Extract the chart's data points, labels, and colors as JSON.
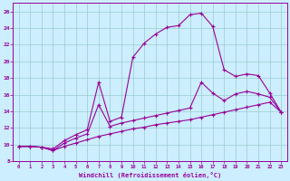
{
  "xlabel": "Windchill (Refroidissement éolien,°C)",
  "bg_color": "#cceeff",
  "line_color": "#990099",
  "grid_color": "#99cccc",
  "xlim": [
    -0.5,
    23.5
  ],
  "ylim": [
    8,
    27
  ],
  "yticks": [
    8,
    10,
    12,
    14,
    16,
    18,
    20,
    22,
    24,
    26
  ],
  "xticks": [
    0,
    1,
    2,
    3,
    4,
    5,
    6,
    7,
    8,
    9,
    10,
    11,
    12,
    13,
    14,
    15,
    16,
    17,
    18,
    19,
    20,
    21,
    22,
    23
  ],
  "line_bottom_x": [
    0,
    1,
    2,
    3,
    4,
    5,
    6,
    7,
    8,
    9,
    10,
    11,
    12,
    13,
    14,
    15,
    16,
    17,
    18,
    19,
    20,
    21,
    22,
    23
  ],
  "line_bottom_y": [
    9.8,
    9.8,
    9.7,
    9.3,
    9.8,
    10.2,
    10.6,
    11.0,
    11.3,
    11.6,
    11.9,
    12.1,
    12.4,
    12.6,
    12.8,
    13.0,
    13.3,
    13.6,
    13.9,
    14.2,
    14.5,
    14.8,
    15.1,
    13.9
  ],
  "line_mid_x": [
    0,
    1,
    2,
    3,
    4,
    5,
    6,
    7,
    8,
    9,
    10,
    11,
    12,
    13,
    14,
    15,
    16,
    17,
    18,
    19,
    20,
    21,
    22,
    23
  ],
  "line_mid_y": [
    9.8,
    9.8,
    9.7,
    9.3,
    10.2,
    10.8,
    11.3,
    14.8,
    12.2,
    12.6,
    12.9,
    13.2,
    13.5,
    13.8,
    14.1,
    14.4,
    17.5,
    16.2,
    15.3,
    16.1,
    16.4,
    16.1,
    15.7,
    13.9
  ],
  "line_top_x": [
    0,
    1,
    2,
    3,
    4,
    5,
    6,
    7,
    8,
    9,
    10,
    11,
    12,
    13,
    14,
    15,
    16,
    17,
    18,
    19,
    20,
    21,
    22,
    23
  ],
  "line_top_y": [
    9.8,
    9.8,
    9.7,
    9.5,
    10.5,
    11.2,
    11.8,
    17.5,
    12.8,
    13.3,
    20.5,
    22.2,
    23.3,
    24.1,
    24.3,
    25.6,
    25.8,
    24.2,
    19.0,
    18.2,
    18.5,
    18.3,
    16.2,
    13.9
  ]
}
